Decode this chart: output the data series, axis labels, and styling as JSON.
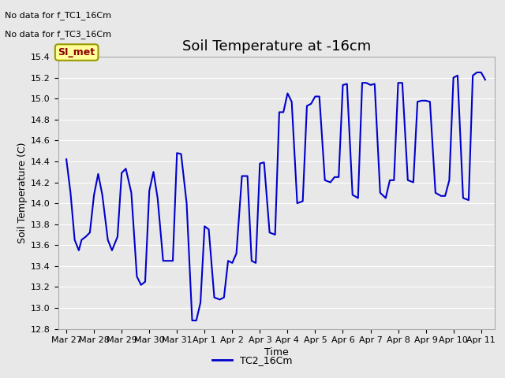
{
  "title": "Soil Temperature at -16cm",
  "xlabel": "Time",
  "ylabel": "Soil Temperature (C)",
  "ylim": [
    12.8,
    15.4
  ],
  "background_color": "#E8E8E8",
  "plot_bg_color": "#E8E8E8",
  "line_color": "#0000CC",
  "line_width": 1.5,
  "annotations_text": [
    "No data for f_TC1_16Cm",
    "No data for f_TC3_16Cm"
  ],
  "legend_label": "TC2_16Cm",
  "legend_box_color": "#FFFF99",
  "legend_box_text": "SI_met",
  "x_tick_labels": [
    "Mar 27",
    "Mar 28",
    "Mar 29",
    "Mar 30",
    "Mar 31",
    "Apr 1",
    "Apr 2",
    "Apr 3",
    "Apr 4",
    "Apr 5",
    "Apr 6",
    "Apr 7",
    "Apr 8",
    "Apr 9",
    "Apr 10",
    "Apr 11"
  ],
  "x_tick_positions": [
    0,
    1,
    2,
    3,
    4,
    5,
    6,
    7,
    8,
    9,
    10,
    11,
    12,
    13,
    14,
    15
  ],
  "y_ticks": [
    12.8,
    13.0,
    13.2,
    13.4,
    13.6,
    13.8,
    14.0,
    14.2,
    14.4,
    14.6,
    14.8,
    15.0,
    15.2,
    15.4
  ],
  "x_data": [
    0.0,
    0.15,
    0.3,
    0.45,
    0.55,
    0.7,
    0.85,
    1.0,
    1.15,
    1.3,
    1.5,
    1.65,
    1.85,
    2.0,
    2.15,
    2.35,
    2.55,
    2.7,
    2.85,
    3.0,
    3.15,
    3.3,
    3.5,
    3.7,
    3.85,
    4.0,
    4.15,
    4.35,
    4.55,
    4.7,
    4.85,
    5.0,
    5.15,
    5.35,
    5.55,
    5.7,
    5.85,
    6.0,
    6.15,
    6.35,
    6.55,
    6.7,
    6.85,
    7.0,
    7.15,
    7.35,
    7.55,
    7.7,
    7.85,
    8.0,
    8.15,
    8.35,
    8.55,
    8.7,
    8.85,
    9.0,
    9.15,
    9.35,
    9.55,
    9.7,
    9.85,
    10.0,
    10.15,
    10.35,
    10.55,
    10.7,
    10.85,
    11.0,
    11.15,
    11.35,
    11.55,
    11.7,
    11.85,
    12.0,
    12.15,
    12.35,
    12.55,
    12.7,
    12.85,
    13.0,
    13.15,
    13.35,
    13.55,
    13.7,
    13.85,
    14.0,
    14.15,
    14.35,
    14.55,
    14.7,
    14.85,
    15.0,
    15.15
  ],
  "y_data": [
    14.42,
    14.1,
    13.65,
    13.55,
    13.65,
    13.68,
    13.72,
    14.08,
    14.28,
    14.08,
    13.65,
    13.55,
    13.68,
    14.29,
    14.33,
    14.1,
    13.3,
    13.22,
    13.25,
    14.12,
    14.3,
    14.05,
    13.45,
    13.45,
    13.45,
    14.48,
    14.47,
    14.0,
    12.88,
    12.88,
    13.05,
    13.78,
    13.75,
    13.1,
    13.08,
    13.1,
    13.45,
    13.43,
    13.52,
    14.26,
    14.26,
    13.45,
    13.43,
    14.38,
    14.39,
    13.72,
    13.7,
    14.87,
    14.87,
    15.05,
    14.97,
    14.0,
    14.02,
    14.93,
    14.95,
    15.02,
    15.02,
    14.22,
    14.2,
    14.25,
    14.25,
    15.13,
    15.14,
    14.08,
    14.05,
    15.15,
    15.15,
    15.13,
    15.14,
    14.1,
    14.05,
    14.22,
    14.22,
    15.15,
    15.15,
    14.22,
    14.2,
    14.97,
    14.98,
    14.98,
    14.97,
    14.1,
    14.07,
    14.07,
    14.22,
    15.2,
    15.22,
    14.05,
    14.03,
    15.22,
    15.25,
    15.25,
    15.18
  ]
}
